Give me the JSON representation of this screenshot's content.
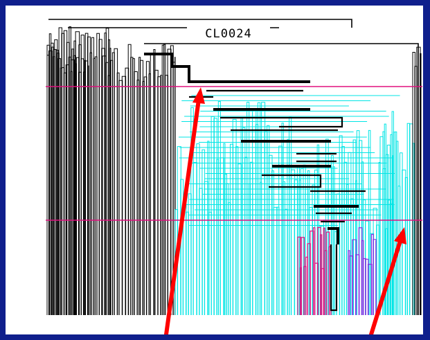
{
  "diagram": {
    "title": "CL0024",
    "colors": {
      "frame": "#0f1f8c",
      "background": "#ffffff",
      "black_tree": "#000000",
      "cyan_tree": "#00e5e5",
      "magenta_tree": "#e0107f",
      "purple_tree": "#8a2be2",
      "cut_line": "#e0107f",
      "arrow": "#ff0000"
    },
    "cut_levels": [
      "upper",
      "lower"
    ],
    "arrows": [
      "arrow-left",
      "arrow-right"
    ]
  }
}
